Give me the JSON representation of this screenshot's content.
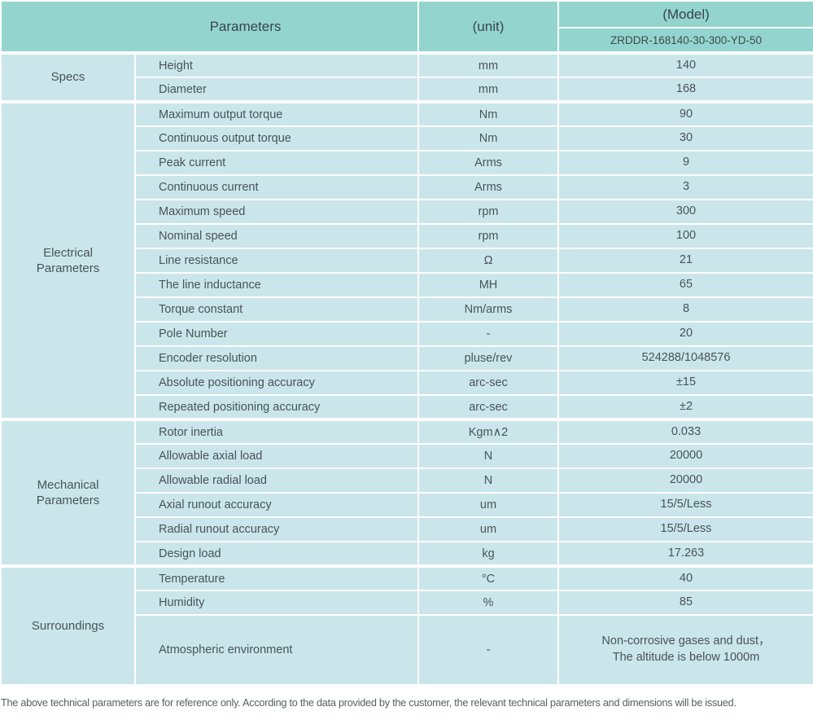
{
  "header": {
    "parameters": "Parameters",
    "unit": "(unit)",
    "model": "(Model)",
    "model_value": "ZRDDR-168140-30-300-YD-50"
  },
  "sections": [
    {
      "group": "Specs",
      "rows": [
        {
          "param": "Height",
          "unit": "mm",
          "value": "140"
        },
        {
          "param": "Diameter",
          "unit": "mm",
          "value": "168"
        }
      ]
    },
    {
      "group": "Electrical\nParameters",
      "rows": [
        {
          "param": "Maximum output torque",
          "unit": "Nm",
          "value": "90"
        },
        {
          "param": "Continuous output torque",
          "unit": "Nm",
          "value": "30"
        },
        {
          "param": "Peak current",
          "unit": "Arms",
          "value": "9"
        },
        {
          "param": "Continuous current",
          "unit": "Arms",
          "value": "3"
        },
        {
          "param": "Maximum speed",
          "unit": "rpm",
          "value": "300"
        },
        {
          "param": "Nominal speed",
          "unit": "rpm",
          "value": "100"
        },
        {
          "param": "Line resistance",
          "unit": "Ω",
          "value": "21"
        },
        {
          "param": "The line inductance",
          "unit": "MH",
          "value": "65"
        },
        {
          "param": "Torque constant",
          "unit": "Nm/arms",
          "value": "8"
        },
        {
          "param": "Pole Number",
          "unit": "-",
          "value": "20"
        },
        {
          "param": "Encoder resolution",
          "unit": "pluse/rev",
          "value": "524288/1048576"
        },
        {
          "param": "Absolute positioning accuracy",
          "unit": "arc-sec",
          "value": "±15"
        },
        {
          "param": "Repeated positioning accuracy",
          "unit": "arc-sec",
          "value": "±2"
        }
      ]
    },
    {
      "group": "Mechanical\nParameters",
      "rows": [
        {
          "param": "Rotor inertia",
          "unit": "Kgm∧2",
          "value": "0.033"
        },
        {
          "param": "Allowable axial load",
          "unit": "N",
          "value": "20000"
        },
        {
          "param": "Allowable radial load",
          "unit": "N",
          "value": "20000"
        },
        {
          "param": "Axial runout accuracy",
          "unit": "um",
          "value": "15/5/Less"
        },
        {
          "param": "Radial runout accuracy",
          "unit": "um",
          "value": "15/5/Less"
        },
        {
          "param": "Design load",
          "unit": "kg",
          "value": "17.263"
        }
      ]
    },
    {
      "group": "Surroundings",
      "rows": [
        {
          "param": "Temperature",
          "unit": "°C",
          "value": "40"
        },
        {
          "param": "Humidity",
          "unit": "%",
          "value": "85"
        },
        {
          "param": "Atmospheric environment",
          "unit": "-",
          "value": "Non-corrosive gases and dust，\nThe altitude is below 1000m"
        }
      ]
    }
  ],
  "footer": {
    "note": "The above technical parameters are for reference only. According to the data provided by the customer, the relevant technical parameters and dimensions will be issued."
  },
  "colors": {
    "header_bg": "#93d5ce",
    "cell_bg": "#cae6eb",
    "border": "#ffffff",
    "text": "#495356"
  }
}
